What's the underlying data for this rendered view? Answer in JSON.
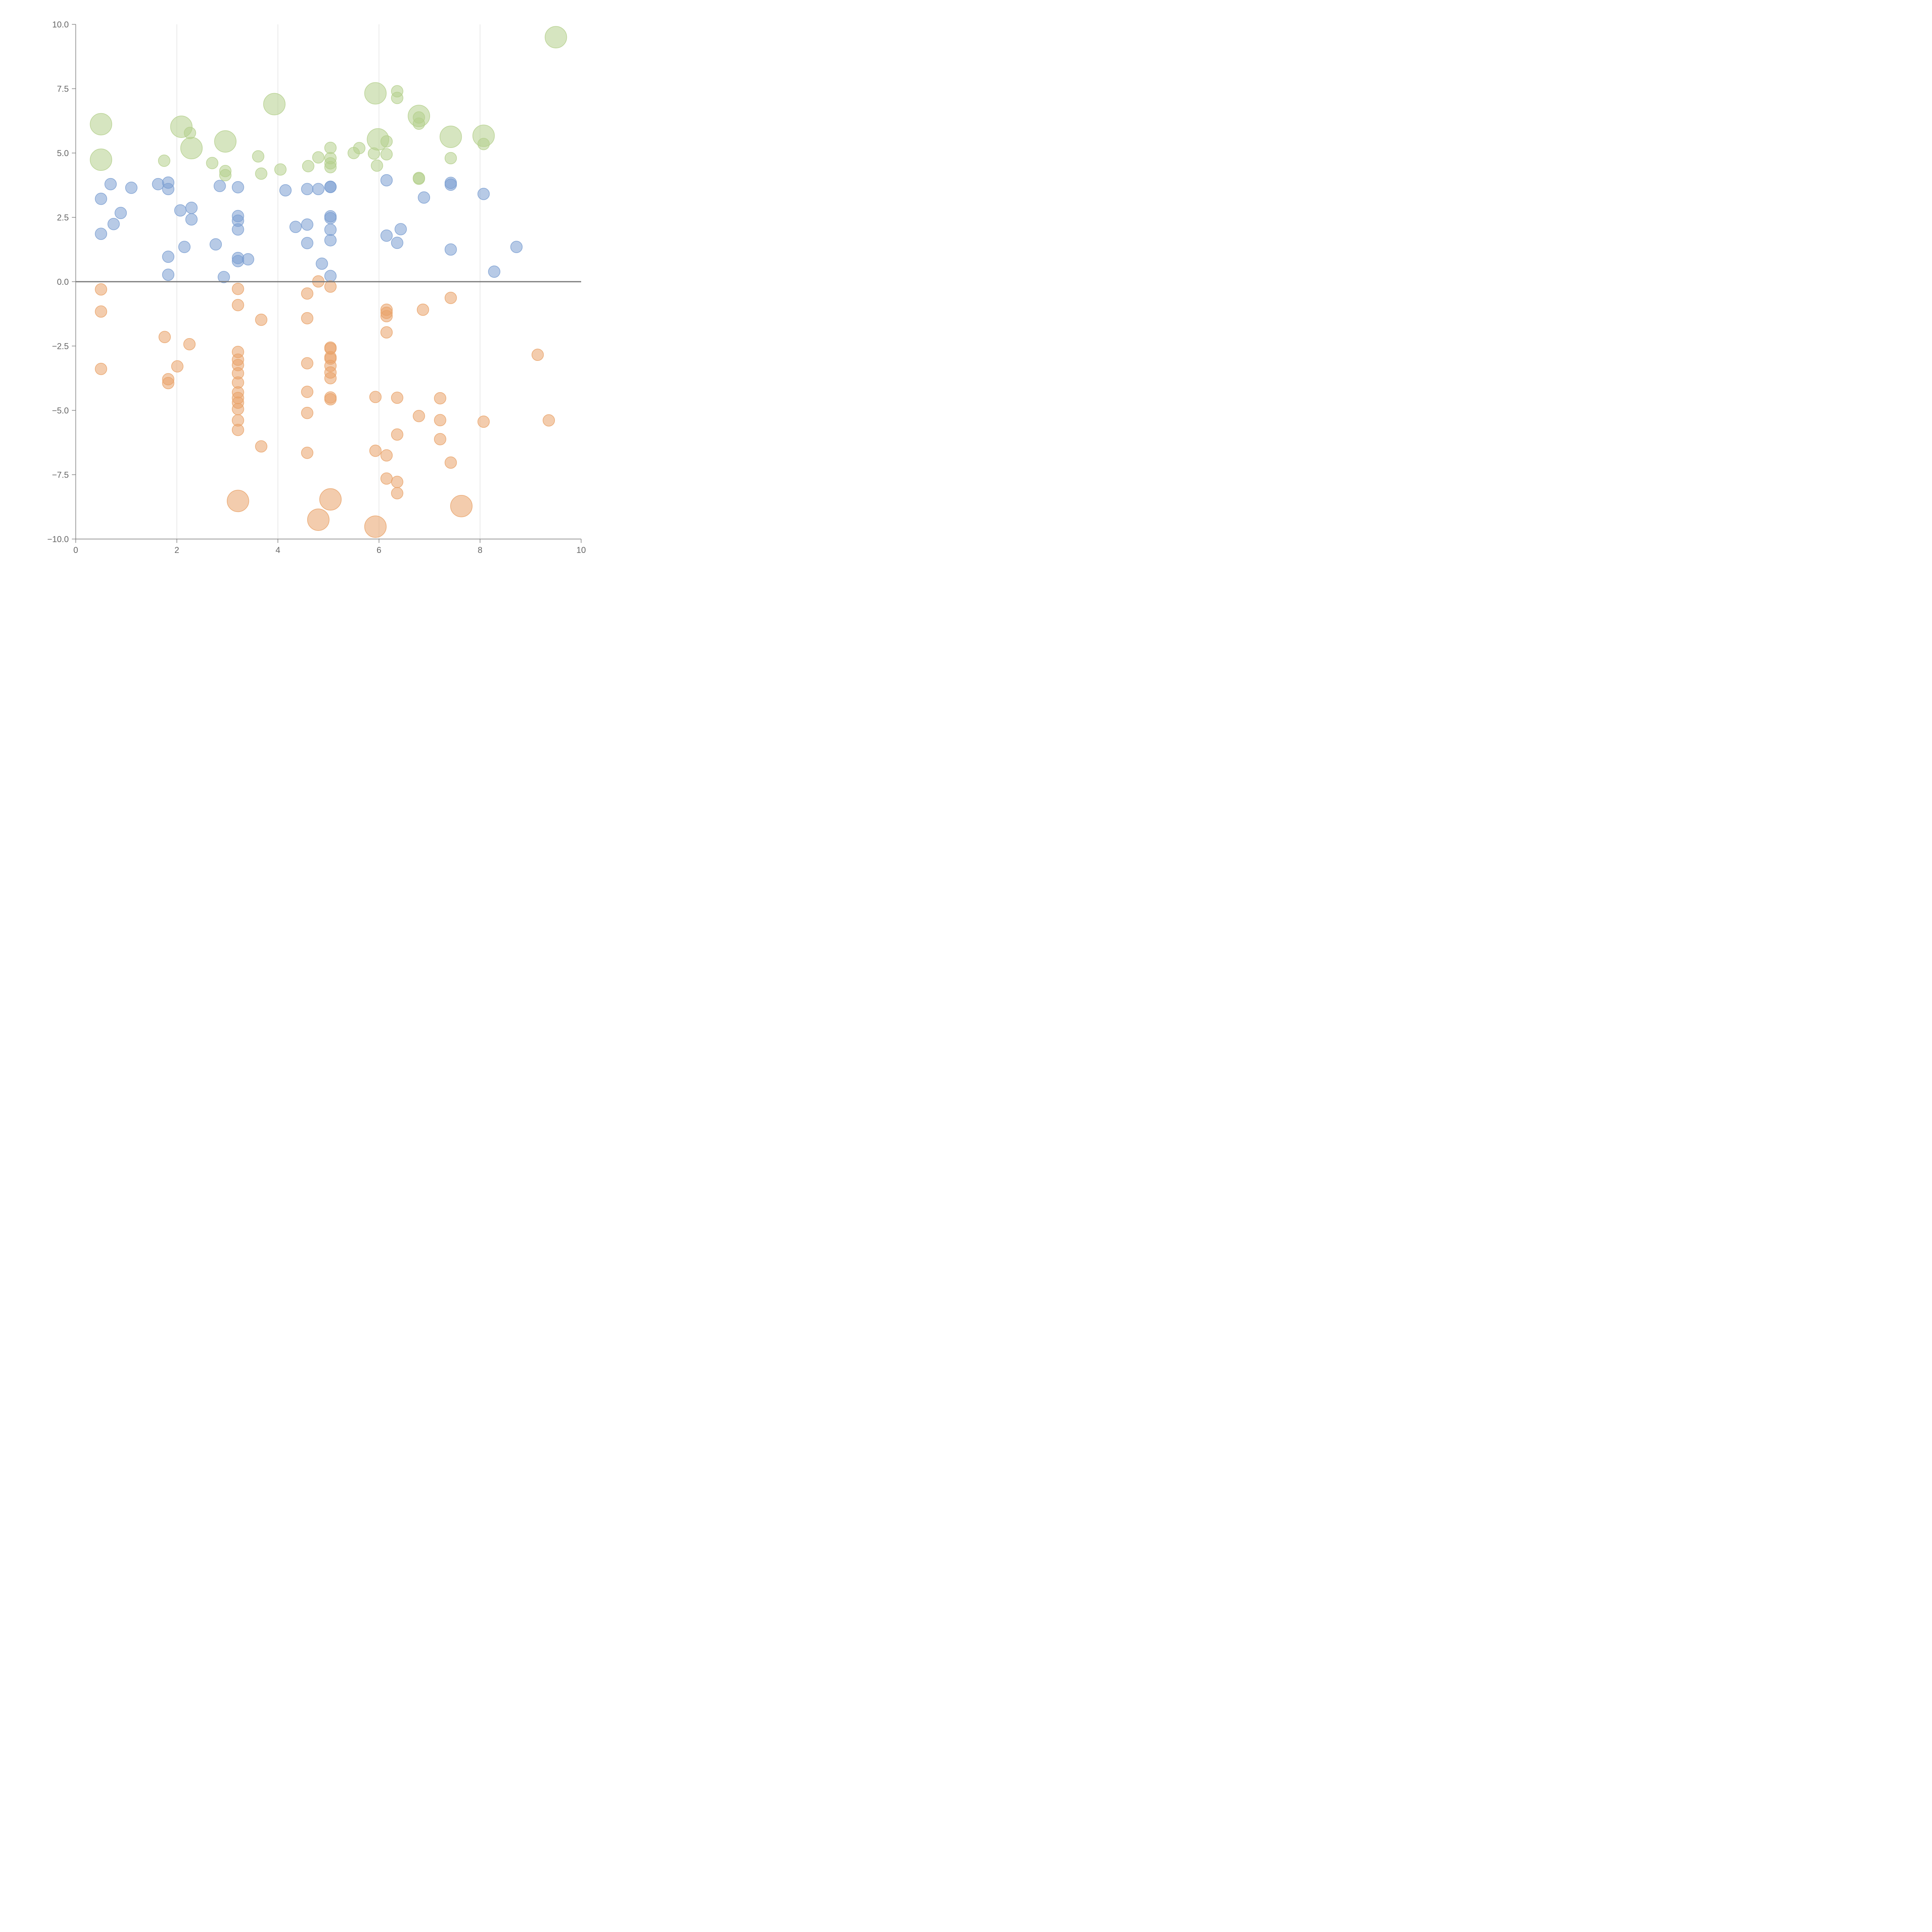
{
  "colors": {
    "positive": "#7b9fd1",
    "negative": "#e9a36a",
    "large": "#b5d08d",
    "axis": "#777777",
    "grid": "#dddddd",
    "tick_text": "#666666"
  },
  "chart_data": {
    "type": "scatter",
    "title": "",
    "xlabel": "",
    "ylabel": "",
    "xlim": [
      0,
      10
    ],
    "ylim": [
      -10,
      10
    ],
    "x_ticks": [
      0,
      2,
      4,
      6,
      8,
      10
    ],
    "x_tick_labels": [
      "0",
      "2",
      "4",
      "6",
      "8",
      "10"
    ],
    "y_ticks": [
      10,
      7.5,
      5,
      2.5,
      0,
      -2.5,
      -5,
      -7.5,
      -10
    ],
    "y_tick_labels": [
      "10.0",
      "7.5",
      "5.0",
      "2.5",
      "0.0",
      "−2.5",
      "−5.0",
      "−7.5",
      "−10.0"
    ],
    "vertical_grid": [
      2,
      4,
      6,
      8
    ],
    "zero_line": 0,
    "series": [
      {
        "name": "blue",
        "color_key": "positive",
        "radius": 15,
        "points": [
          [
            0.5,
            3.22
          ],
          [
            0.69,
            3.79
          ],
          [
            1.1,
            3.65
          ],
          [
            0.5,
            1.86
          ],
          [
            0.75,
            2.24
          ],
          [
            0.89,
            2.67
          ],
          [
            1.63,
            3.79
          ],
          [
            1.83,
            3.85
          ],
          [
            1.83,
            3.6
          ],
          [
            2.07,
            2.77
          ],
          [
            2.29,
            2.87
          ],
          [
            2.29,
            2.42
          ],
          [
            2.15,
            1.35
          ],
          [
            1.83,
            0.97
          ],
          [
            1.83,
            0.27
          ],
          [
            2.77,
            1.45
          ],
          [
            2.93,
            0.18
          ],
          [
            2.85,
            3.72
          ],
          [
            3.21,
            3.67
          ],
          [
            3.21,
            2.55
          ],
          [
            3.21,
            2.37
          ],
          [
            3.21,
            2.03
          ],
          [
            3.21,
            0.92
          ],
          [
            3.21,
            0.8
          ],
          [
            3.41,
            0.87
          ],
          [
            4.15,
            3.55
          ],
          [
            4.35,
            2.13
          ],
          [
            4.58,
            3.6
          ],
          [
            4.58,
            2.22
          ],
          [
            4.58,
            1.5
          ],
          [
            4.8,
            3.6
          ],
          [
            4.87,
            0.7
          ],
          [
            5.04,
            3.68
          ],
          [
            5.04,
            3.69
          ],
          [
            5.04,
            2.54
          ],
          [
            5.04,
            2.47
          ],
          [
            5.04,
            2.02
          ],
          [
            5.04,
            1.61
          ],
          [
            5.04,
            0.22
          ],
          [
            6.15,
            3.94
          ],
          [
            6.15,
            1.79
          ],
          [
            6.36,
            1.51
          ],
          [
            6.43,
            2.04
          ],
          [
            6.89,
            3.27
          ],
          [
            7.42,
            3.84
          ],
          [
            7.42,
            3.77
          ],
          [
            7.42,
            1.25
          ],
          [
            8.07,
            3.41
          ],
          [
            8.28,
            0.39
          ],
          [
            8.72,
            1.35
          ]
        ]
      },
      {
        "name": "orange",
        "color_key": "negative",
        "radius": 15,
        "points": [
          [
            0.5,
            -0.3
          ],
          [
            0.5,
            -1.16
          ],
          [
            0.5,
            -3.39
          ],
          [
            1.76,
            -2.15
          ],
          [
            1.83,
            -3.79
          ],
          [
            1.83,
            -3.94
          ],
          [
            2.01,
            -3.29
          ],
          [
            2.25,
            -2.43
          ],
          [
            3.21,
            -0.28
          ],
          [
            3.21,
            -0.91
          ],
          [
            3.21,
            -2.73
          ],
          [
            3.21,
            -3.03
          ],
          [
            3.21,
            -3.24
          ],
          [
            3.21,
            -3.56
          ],
          [
            3.21,
            -3.92
          ],
          [
            3.21,
            -4.3
          ],
          [
            3.21,
            -4.52
          ],
          [
            3.21,
            -4.7
          ],
          [
            3.21,
            -4.95
          ],
          [
            3.21,
            -5.39
          ],
          [
            3.21,
            -5.76
          ],
          [
            3.67,
            -1.48
          ],
          [
            3.67,
            -6.4
          ],
          [
            4.58,
            -0.46
          ],
          [
            4.58,
            -1.42
          ],
          [
            4.58,
            -3.17
          ],
          [
            4.58,
            -4.28
          ],
          [
            4.58,
            -5.1
          ],
          [
            4.58,
            -6.65
          ],
          [
            4.8,
            0.01
          ],
          [
            5.04,
            -0.19
          ],
          [
            5.04,
            -2.56
          ],
          [
            5.04,
            -2.6
          ],
          [
            5.04,
            -2.93
          ],
          [
            5.04,
            -2.99
          ],
          [
            5.04,
            -3.27
          ],
          [
            5.04,
            -3.53
          ],
          [
            5.04,
            -3.75
          ],
          [
            5.04,
            -4.5
          ],
          [
            5.04,
            -4.57
          ],
          [
            5.93,
            -4.48
          ],
          [
            5.93,
            -6.57
          ],
          [
            6.15,
            -1.09
          ],
          [
            6.15,
            -1.21
          ],
          [
            6.15,
            -1.34
          ],
          [
            6.15,
            -1.97
          ],
          [
            6.15,
            -6.75
          ],
          [
            6.15,
            -7.65
          ],
          [
            6.36,
            -4.51
          ],
          [
            6.36,
            -5.94
          ],
          [
            6.36,
            -7.78
          ],
          [
            6.36,
            -8.22
          ],
          [
            6.79,
            -5.22
          ],
          [
            6.87,
            -1.09
          ],
          [
            7.21,
            -4.53
          ],
          [
            7.21,
            -5.38
          ],
          [
            7.21,
            -6.12
          ],
          [
            7.42,
            -0.63
          ],
          [
            7.42,
            -7.03
          ],
          [
            8.07,
            -5.44
          ],
          [
            9.14,
            -2.84
          ],
          [
            9.36,
            -5.39
          ]
        ]
      },
      {
        "name": "green-small",
        "color_key": "large",
        "radius": 15,
        "points": [
          [
            1.75,
            4.7
          ],
          [
            2.26,
            5.78
          ],
          [
            2.7,
            4.61
          ],
          [
            2.96,
            4.3
          ],
          [
            2.96,
            4.14
          ],
          [
            3.61,
            4.87
          ],
          [
            3.67,
            4.2
          ],
          [
            4.05,
            4.36
          ],
          [
            4.6,
            4.49
          ],
          [
            4.8,
            4.83
          ],
          [
            5.04,
            5.2
          ],
          [
            5.04,
            4.8
          ],
          [
            5.04,
            4.6
          ],
          [
            5.04,
            4.45
          ],
          [
            5.5,
            5.0
          ],
          [
            5.61,
            5.19
          ],
          [
            5.9,
            4.98
          ],
          [
            5.96,
            4.51
          ],
          [
            6.15,
            4.95
          ],
          [
            6.15,
            5.45
          ],
          [
            6.36,
            7.4
          ],
          [
            6.36,
            7.14
          ],
          [
            6.79,
            6.38
          ],
          [
            6.79,
            6.14
          ],
          [
            6.79,
            4.03
          ],
          [
            6.79,
            4.0
          ],
          [
            7.42,
            4.8
          ],
          [
            8.07,
            5.35
          ]
        ]
      },
      {
        "name": "green-large",
        "color_key": "large",
        "radius": 28,
        "points": [
          [
            0.5,
            6.12
          ],
          [
            0.5,
            4.74
          ],
          [
            2.09,
            6.02
          ],
          [
            2.29,
            5.19
          ],
          [
            2.96,
            5.45
          ],
          [
            3.93,
            6.9
          ],
          [
            5.93,
            7.32
          ],
          [
            5.98,
            5.53
          ],
          [
            6.79,
            6.44
          ],
          [
            7.42,
            5.63
          ],
          [
            8.07,
            5.67
          ],
          [
            9.5,
            9.5
          ]
        ]
      },
      {
        "name": "orange-large",
        "color_key": "negative",
        "radius": 28,
        "points": [
          [
            3.21,
            -8.52
          ],
          [
            4.8,
            -9.25
          ],
          [
            5.04,
            -8.46
          ],
          [
            5.93,
            -9.52
          ],
          [
            7.63,
            -8.72
          ]
        ]
      }
    ]
  }
}
